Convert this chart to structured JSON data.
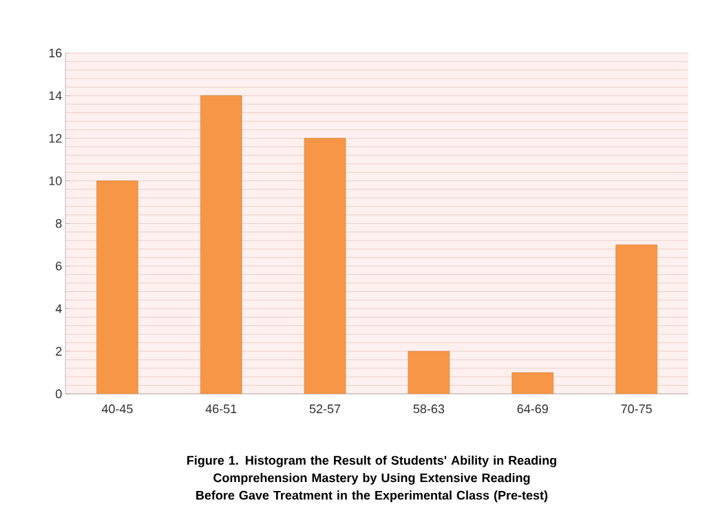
{
  "chart_data": {
    "type": "bar",
    "title": "Figure  1. Histogram the Result of Students' Ability in Reading Comprehension Mastery by Using Extensive Reading Before Gave Treatment in the Experimental Class (Pre-test)",
    "categories": [
      "40-45",
      "46-51",
      "52-57",
      "58-63",
      "64-69",
      "70-75"
    ],
    "values": [
      10,
      14,
      12,
      2,
      1,
      7
    ],
    "color": "#f79646",
    "ylim": [
      0,
      16
    ],
    "yticks": [
      0,
      2,
      4,
      6,
      8,
      10,
      12,
      14,
      16
    ],
    "grid": "y"
  }
}
